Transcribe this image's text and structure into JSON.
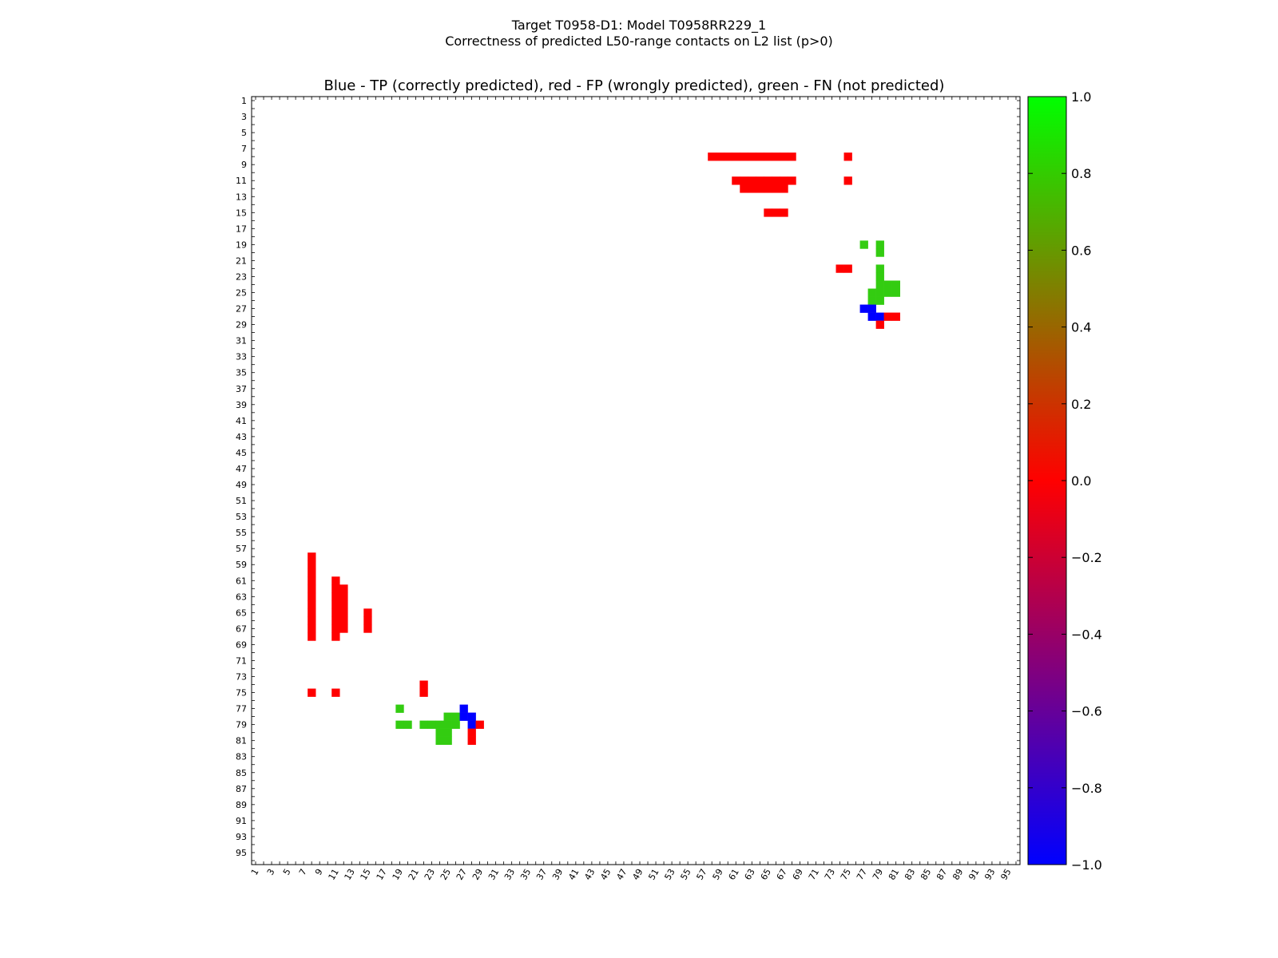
{
  "suptitle_line1": "Target T0958-D1: Model T0958RR229_1",
  "suptitle_line2": "Correctness of predicted L50-range contacts on L2 list (p>0)",
  "chart_data": {
    "type": "heatmap",
    "title": "Blue - TP (correctly predicted), red - FP (wrongly predicted), green - FN (not predicted)",
    "n": 96,
    "xlim": [
      1,
      96
    ],
    "ylim": [
      1,
      96
    ],
    "x_tick_labels": [
      "1",
      "3",
      "5",
      "7",
      "9",
      "11",
      "13",
      "15",
      "17",
      "19",
      "21",
      "23",
      "25",
      "27",
      "29",
      "31",
      "33",
      "35",
      "37",
      "39",
      "41",
      "43",
      "45",
      "47",
      "49",
      "51",
      "53",
      "55",
      "57",
      "59",
      "61",
      "63",
      "65",
      "67",
      "69",
      "71",
      "73",
      "75",
      "77",
      "79",
      "81",
      "83",
      "85",
      "87",
      "89",
      "91",
      "93",
      "95"
    ],
    "y_tick_labels": [
      "1",
      "3",
      "5",
      "7",
      "9",
      "11",
      "13",
      "15",
      "17",
      "19",
      "21",
      "23",
      "25",
      "27",
      "29",
      "31",
      "33",
      "35",
      "37",
      "39",
      "41",
      "43",
      "45",
      "47",
      "49",
      "51",
      "53",
      "55",
      "57",
      "59",
      "61",
      "63",
      "65",
      "67",
      "69",
      "71",
      "73",
      "75",
      "77",
      "79",
      "81",
      "83",
      "85",
      "87",
      "89",
      "91",
      "93",
      "95"
    ],
    "colorbar": {
      "min": -1.0,
      "max": 1.0,
      "tick_labels": [
        "1.0",
        "0.8",
        "0.6",
        "0.4",
        "0.2",
        "0.0",
        "−0.2",
        "−0.4",
        "−0.6",
        "−0.8",
        "−1.0"
      ],
      "colors": [
        "#0000ff",
        "#ff0000",
        "#00ff00"
      ]
    },
    "category_colors": {
      "TP": "#0000ff",
      "FP": "#ff0000",
      "FN": "#33cc11"
    },
    "legend": "none",
    "grid": false,
    "cells": [
      {
        "i": 8,
        "j": 58,
        "c": "FP"
      },
      {
        "i": 8,
        "j": 59,
        "c": "FP"
      },
      {
        "i": 8,
        "j": 60,
        "c": "FP"
      },
      {
        "i": 8,
        "j": 61,
        "c": "FP"
      },
      {
        "i": 8,
        "j": 62,
        "c": "FP"
      },
      {
        "i": 8,
        "j": 63,
        "c": "FP"
      },
      {
        "i": 8,
        "j": 64,
        "c": "FP"
      },
      {
        "i": 8,
        "j": 65,
        "c": "FP"
      },
      {
        "i": 8,
        "j": 66,
        "c": "FP"
      },
      {
        "i": 8,
        "j": 67,
        "c": "FP"
      },
      {
        "i": 8,
        "j": 68,
        "c": "FP"
      },
      {
        "i": 8,
        "j": 75,
        "c": "FP"
      },
      {
        "i": 11,
        "j": 61,
        "c": "FP"
      },
      {
        "i": 11,
        "j": 62,
        "c": "FP"
      },
      {
        "i": 11,
        "j": 63,
        "c": "FP"
      },
      {
        "i": 11,
        "j": 64,
        "c": "FP"
      },
      {
        "i": 11,
        "j": 65,
        "c": "FP"
      },
      {
        "i": 11,
        "j": 66,
        "c": "FP"
      },
      {
        "i": 11,
        "j": 67,
        "c": "FP"
      },
      {
        "i": 11,
        "j": 68,
        "c": "FP"
      },
      {
        "i": 11,
        "j": 75,
        "c": "FP"
      },
      {
        "i": 12,
        "j": 62,
        "c": "FP"
      },
      {
        "i": 12,
        "j": 63,
        "c": "FP"
      },
      {
        "i": 12,
        "j": 64,
        "c": "FP"
      },
      {
        "i": 12,
        "j": 65,
        "c": "FP"
      },
      {
        "i": 12,
        "j": 66,
        "c": "FP"
      },
      {
        "i": 12,
        "j": 67,
        "c": "FP"
      },
      {
        "i": 15,
        "j": 65,
        "c": "FP"
      },
      {
        "i": 15,
        "j": 66,
        "c": "FP"
      },
      {
        "i": 15,
        "j": 67,
        "c": "FP"
      },
      {
        "i": 19,
        "j": 77,
        "c": "FN"
      },
      {
        "i": 19,
        "j": 79,
        "c": "FN"
      },
      {
        "i": 20,
        "j": 79,
        "c": "FN"
      },
      {
        "i": 22,
        "j": 74,
        "c": "FP"
      },
      {
        "i": 22,
        "j": 75,
        "c": "FP"
      },
      {
        "i": 22,
        "j": 79,
        "c": "FN"
      },
      {
        "i": 23,
        "j": 79,
        "c": "FN"
      },
      {
        "i": 24,
        "j": 79,
        "c": "FN"
      },
      {
        "i": 24,
        "j": 80,
        "c": "FN"
      },
      {
        "i": 24,
        "j": 81,
        "c": "FN"
      },
      {
        "i": 25,
        "j": 78,
        "c": "FN"
      },
      {
        "i": 25,
        "j": 79,
        "c": "FN"
      },
      {
        "i": 25,
        "j": 80,
        "c": "FN"
      },
      {
        "i": 25,
        "j": 81,
        "c": "FN"
      },
      {
        "i": 26,
        "j": 78,
        "c": "FN"
      },
      {
        "i": 26,
        "j": 79,
        "c": "FN"
      },
      {
        "i": 27,
        "j": 77,
        "c": "TP"
      },
      {
        "i": 27,
        "j": 78,
        "c": "TP"
      },
      {
        "i": 28,
        "j": 78,
        "c": "TP"
      },
      {
        "i": 28,
        "j": 79,
        "c": "TP"
      },
      {
        "i": 28,
        "j": 80,
        "c": "FP"
      },
      {
        "i": 28,
        "j": 81,
        "c": "FP"
      },
      {
        "i": 29,
        "j": 79,
        "c": "FP"
      },
      {
        "i": 58,
        "j": 8,
        "c": "FP"
      },
      {
        "i": 59,
        "j": 8,
        "c": "FP"
      },
      {
        "i": 60,
        "j": 8,
        "c": "FP"
      },
      {
        "i": 61,
        "j": 8,
        "c": "FP"
      },
      {
        "i": 62,
        "j": 8,
        "c": "FP"
      },
      {
        "i": 63,
        "j": 8,
        "c": "FP"
      },
      {
        "i": 64,
        "j": 8,
        "c": "FP"
      },
      {
        "i": 65,
        "j": 8,
        "c": "FP"
      },
      {
        "i": 66,
        "j": 8,
        "c": "FP"
      },
      {
        "i": 67,
        "j": 8,
        "c": "FP"
      },
      {
        "i": 68,
        "j": 8,
        "c": "FP"
      },
      {
        "i": 61,
        "j": 11,
        "c": "FP"
      },
      {
        "i": 62,
        "j": 11,
        "c": "FP"
      },
      {
        "i": 63,
        "j": 11,
        "c": "FP"
      },
      {
        "i": 64,
        "j": 11,
        "c": "FP"
      },
      {
        "i": 65,
        "j": 11,
        "c": "FP"
      },
      {
        "i": 66,
        "j": 11,
        "c": "FP"
      },
      {
        "i": 67,
        "j": 11,
        "c": "FP"
      },
      {
        "i": 68,
        "j": 11,
        "c": "FP"
      },
      {
        "i": 62,
        "j": 12,
        "c": "FP"
      },
      {
        "i": 63,
        "j": 12,
        "c": "FP"
      },
      {
        "i": 64,
        "j": 12,
        "c": "FP"
      },
      {
        "i": 65,
        "j": 12,
        "c": "FP"
      },
      {
        "i": 66,
        "j": 12,
        "c": "FP"
      },
      {
        "i": 67,
        "j": 12,
        "c": "FP"
      },
      {
        "i": 65,
        "j": 15,
        "c": "FP"
      },
      {
        "i": 66,
        "j": 15,
        "c": "FP"
      },
      {
        "i": 67,
        "j": 15,
        "c": "FP"
      },
      {
        "i": 74,
        "j": 22,
        "c": "FP"
      },
      {
        "i": 75,
        "j": 22,
        "c": "FP"
      },
      {
        "i": 75,
        "j": 8,
        "c": "FP"
      },
      {
        "i": 75,
        "j": 11,
        "c": "FP"
      },
      {
        "i": 77,
        "j": 19,
        "c": "FN"
      },
      {
        "i": 79,
        "j": 19,
        "c": "FN"
      },
      {
        "i": 79,
        "j": 20,
        "c": "FN"
      },
      {
        "i": 79,
        "j": 22,
        "c": "FN"
      },
      {
        "i": 79,
        "j": 23,
        "c": "FN"
      },
      {
        "i": 79,
        "j": 24,
        "c": "FN"
      },
      {
        "i": 80,
        "j": 24,
        "c": "FN"
      },
      {
        "i": 81,
        "j": 24,
        "c": "FN"
      },
      {
        "i": 78,
        "j": 25,
        "c": "FN"
      },
      {
        "i": 79,
        "j": 25,
        "c": "FN"
      },
      {
        "i": 80,
        "j": 25,
        "c": "FN"
      },
      {
        "i": 81,
        "j": 25,
        "c": "FN"
      },
      {
        "i": 78,
        "j": 26,
        "c": "FN"
      },
      {
        "i": 79,
        "j": 26,
        "c": "FN"
      },
      {
        "i": 77,
        "j": 27,
        "c": "TP"
      },
      {
        "i": 78,
        "j": 27,
        "c": "TP"
      },
      {
        "i": 78,
        "j": 28,
        "c": "TP"
      },
      {
        "i": 79,
        "j": 28,
        "c": "TP"
      },
      {
        "i": 80,
        "j": 28,
        "c": "FP"
      },
      {
        "i": 81,
        "j": 28,
        "c": "FP"
      },
      {
        "i": 79,
        "j": 29,
        "c": "FP"
      }
    ]
  }
}
